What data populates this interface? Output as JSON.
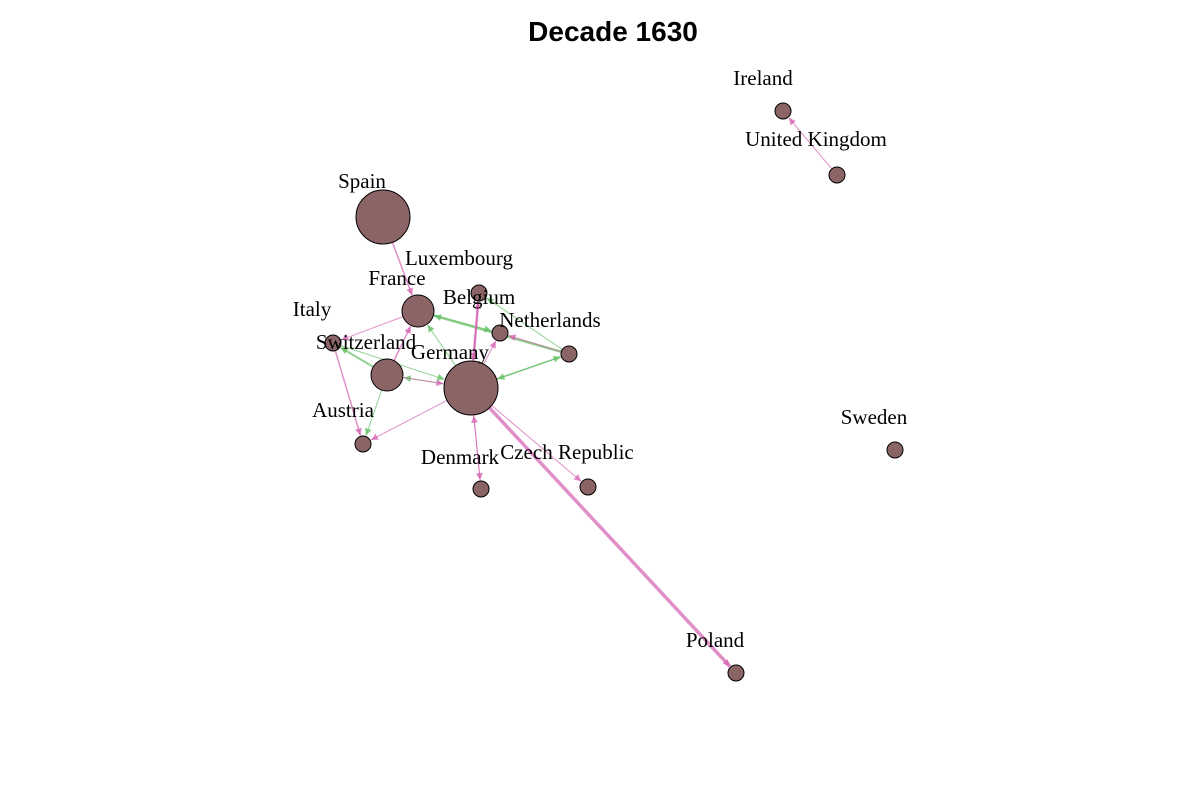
{
  "title": "Decade 1630",
  "colors": {
    "node_fill": "#8b6466",
    "node_stroke": "#000000",
    "edge_pink": "#d45fb0",
    "edge_green": "#5fbf5f",
    "background": "#ffffff"
  },
  "nodes": [
    {
      "id": "ireland",
      "label": "Ireland",
      "size": "small"
    },
    {
      "id": "united_kingdom",
      "label": "United Kingdom",
      "size": "small"
    },
    {
      "id": "spain",
      "label": "Spain",
      "size": "large"
    },
    {
      "id": "luxembourg",
      "label": "Luxembourg",
      "size": "small"
    },
    {
      "id": "france",
      "label": "France",
      "size": "medium"
    },
    {
      "id": "belgium",
      "label": "Belgium",
      "size": "small"
    },
    {
      "id": "italy",
      "label": "Italy",
      "size": "small"
    },
    {
      "id": "netherlands",
      "label": "Netherlands",
      "size": "small"
    },
    {
      "id": "switzerland",
      "label": "Switzerland",
      "size": "medium"
    },
    {
      "id": "germany",
      "label": "Germany",
      "size": "large"
    },
    {
      "id": "austria",
      "label": "Austria",
      "size": "small"
    },
    {
      "id": "denmark",
      "label": "Denmark",
      "size": "small"
    },
    {
      "id": "czech_republic",
      "label": "Czech Republic",
      "size": "small"
    },
    {
      "id": "sweden",
      "label": "Sweden",
      "size": "small"
    },
    {
      "id": "poland",
      "label": "Poland",
      "size": "small"
    }
  ],
  "edges": [
    {
      "from": "united_kingdom",
      "to": "ireland",
      "color": "pink",
      "weight": 1
    },
    {
      "from": "spain",
      "to": "france",
      "color": "pink",
      "weight": 1.5
    },
    {
      "from": "france",
      "to": "belgium",
      "color": "green",
      "weight": 1
    },
    {
      "from": "netherlands",
      "to": "france",
      "color": "green",
      "weight": 2.5
    },
    {
      "from": "france",
      "to": "italy",
      "color": "pink",
      "weight": 1
    },
    {
      "from": "netherlands",
      "to": "belgium",
      "color": "pink",
      "weight": 1
    },
    {
      "from": "germany",
      "to": "belgium",
      "color": "pink",
      "weight": 1
    },
    {
      "from": "germany",
      "to": "netherlands",
      "color": "green",
      "weight": 1.5
    },
    {
      "from": "germany",
      "to": "luxembourg",
      "color": "pink",
      "weight": 1.5
    },
    {
      "from": "germany",
      "to": "poland",
      "color": "pink",
      "weight": 3.5
    },
    {
      "from": "luxembourg",
      "to": "germany",
      "color": "pink",
      "weight": 2.5
    },
    {
      "from": "netherlands",
      "to": "luxembourg",
      "color": "green",
      "weight": 1
    },
    {
      "from": "germany",
      "to": "switzerland",
      "color": "green",
      "weight": 1
    },
    {
      "from": "switzerland",
      "to": "germany",
      "color": "pink",
      "weight": 1
    },
    {
      "from": "switzerland",
      "to": "italy",
      "color": "green",
      "weight": 2
    },
    {
      "from": "italy",
      "to": "austria",
      "color": "pink",
      "weight": 1.5
    },
    {
      "from": "switzerland",
      "to": "austria",
      "color": "green",
      "weight": 1
    },
    {
      "from": "germany",
      "to": "austria",
      "color": "pink",
      "weight": 1
    },
    {
      "from": "germany",
      "to": "denmark",
      "color": "pink",
      "weight": 1
    },
    {
      "from": "denmark",
      "to": "germany",
      "color": "pink",
      "weight": 1
    },
    {
      "from": "germany",
      "to": "czech_republic",
      "color": "pink",
      "weight": 1
    },
    {
      "from": "germany",
      "to": "france",
      "color": "green",
      "weight": 1
    },
    {
      "from": "switzerland",
      "to": "france",
      "color": "pink",
      "weight": 1.5
    },
    {
      "from": "italy",
      "to": "germany",
      "color": "green",
      "weight": 1
    },
    {
      "from": "netherlands",
      "to": "germany",
      "color": "green",
      "weight": 1
    }
  ]
}
